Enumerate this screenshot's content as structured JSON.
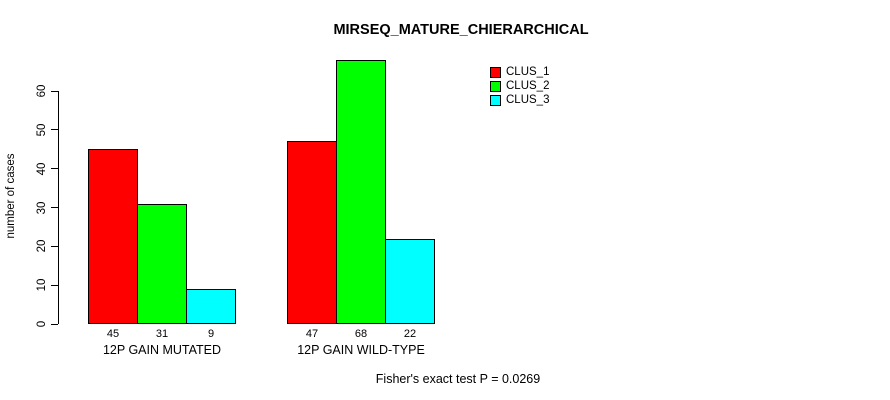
{
  "chart_data": {
    "type": "bar",
    "title": "MIRSEQ_MATURE_CHIERARCHICAL",
    "xlabel": "",
    "ylabel": "number of cases",
    "ylim": [
      0,
      60
    ],
    "yticks": [
      0,
      10,
      20,
      30,
      40,
      50,
      60
    ],
    "grid": false,
    "legend_position": "top-right-inside",
    "categories": [
      "12P GAIN MUTATED",
      "12P GAIN WILD-TYPE"
    ],
    "series": [
      {
        "name": "CLUS_1",
        "color": "#FF0000",
        "values": [
          45,
          47
        ]
      },
      {
        "name": "CLUS_2",
        "color": "#00FF00",
        "values": [
          31,
          68
        ]
      },
      {
        "name": "CLUS_3",
        "color": "#00FFFF",
        "values": [
          9,
          22
        ]
      }
    ],
    "bar_value_labels": [
      [
        45,
        31,
        9
      ],
      [
        47,
        68,
        22
      ]
    ],
    "caption": "Fisher's exact test P = 0.0269"
  },
  "colors": {
    "background": "#FFFFFF",
    "axis": "#000000",
    "text": "#000000",
    "clus_1": "#FF0000",
    "clus_2": "#00FF00",
    "clus_3": "#00FFFF"
  }
}
